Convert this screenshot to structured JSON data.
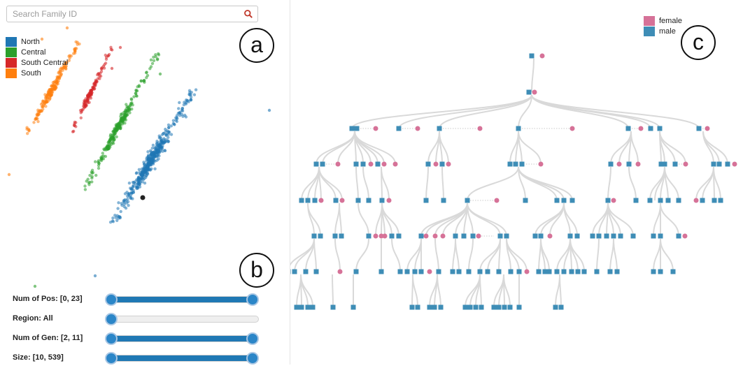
{
  "search": {
    "placeholder": "Search Family ID"
  },
  "region_legend": {
    "items": [
      {
        "label": "North",
        "color": "#1f77b4"
      },
      {
        "label": "Central",
        "color": "#2ca02c"
      },
      {
        "label": "South Central",
        "color": "#d62728"
      },
      {
        "label": "South",
        "color": "#ff7f0e"
      }
    ]
  },
  "gender_legend": {
    "items": [
      {
        "label": "female",
        "color": "#d67298"
      },
      {
        "label": "male",
        "color": "#3e8db6"
      }
    ]
  },
  "panel_labels": {
    "a": "a",
    "b": "b",
    "c": "c"
  },
  "filters": [
    {
      "label": "Num of Pos: [0, 23]",
      "range": [
        0,
        23
      ],
      "low": 0,
      "high": 1
    },
    {
      "label": "Region: All",
      "value": "All",
      "low": 0,
      "high": 0
    },
    {
      "label": "Num of Gen: [2, 11]",
      "range": [
        2,
        11
      ],
      "low": 0,
      "high": 1
    },
    {
      "label": "Size: [10, 539]",
      "range": [
        10,
        539
      ],
      "low": 0,
      "high": 1
    }
  ],
  "colors": {
    "accent": "#1f78b4",
    "female": "#d67298",
    "male": "#3e8db6",
    "link": "#d9d9d9"
  }
}
